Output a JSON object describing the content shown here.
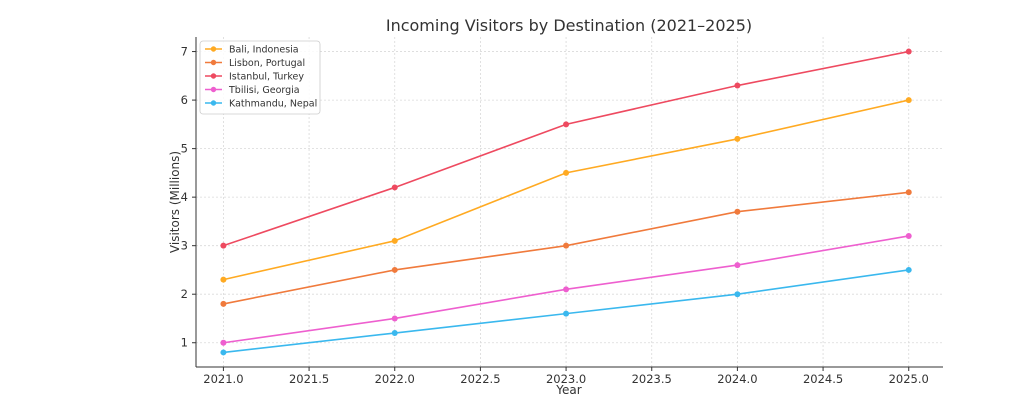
{
  "chart_data": {
    "type": "line",
    "title": "Incoming Visitors by Destination (2021–2025)",
    "xlabel": "Year",
    "ylabel": "Visitors (Millions)",
    "x": [
      2021,
      2022,
      2023,
      2024,
      2025
    ],
    "xticks": [
      "2021.0",
      "2021.5",
      "2022.0",
      "2022.5",
      "2023.0",
      "2023.5",
      "2024.0",
      "2024.5",
      "2025.0"
    ],
    "yticks": [
      "1",
      "2",
      "3",
      "4",
      "5",
      "6",
      "7"
    ],
    "xlim": [
      2020.84,
      2025.2
    ],
    "ylim": [
      0.5,
      7.3
    ],
    "grid": true,
    "legend_position": "top-left",
    "series": [
      {
        "name": "Bali, Indonesia",
        "color": "#FFAA22",
        "values": [
          2.3,
          3.1,
          4.5,
          5.2,
          6.0
        ]
      },
      {
        "name": "Lisbon, Portugal",
        "color": "#F07A3C",
        "values": [
          1.8,
          2.5,
          3.0,
          3.7,
          4.1
        ]
      },
      {
        "name": "Istanbul, Turkey",
        "color": "#EE4A60",
        "values": [
          3.0,
          4.2,
          5.5,
          6.3,
          7.0
        ]
      },
      {
        "name": "Tbilisi, Georgia",
        "color": "#EE5FCF",
        "values": [
          1.0,
          1.5,
          2.1,
          2.6,
          3.2
        ]
      },
      {
        "name": "Kathmandu, Nepal",
        "color": "#3AB8EE",
        "values": [
          0.8,
          1.2,
          1.6,
          2.0,
          2.5
        ]
      }
    ]
  }
}
